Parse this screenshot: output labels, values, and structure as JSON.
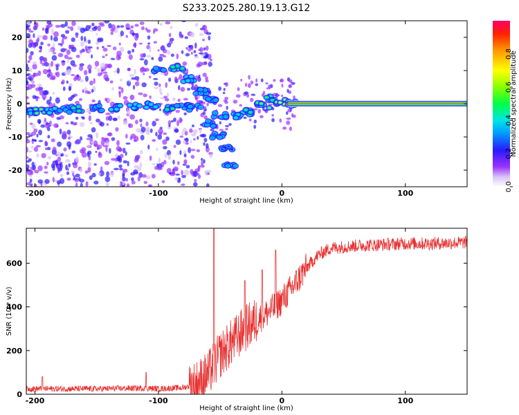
{
  "title": "S233.2025.280.19.13.G12",
  "chart_data": [
    {
      "type": "heatmap",
      "xlabel": "Height of straight line (km)",
      "ylabel": "Frequency (Hz)",
      "xlim": [
        -207,
        150
      ],
      "ylim": [
        -25,
        25
      ],
      "xticks": [
        -200,
        -100,
        0,
        100
      ],
      "yticks": [
        -20,
        -10,
        0,
        10,
        20
      ],
      "colorbar": {
        "label": "Normalized spectral amplitude",
        "ticks": [
          0.0,
          0.2,
          0.4,
          0.6,
          0.8
        ],
        "range": [
          0,
          1
        ]
      },
      "track_points": [
        {
          "x": -205,
          "f": -2.3,
          "a": 0.35
        },
        {
          "x": -195,
          "f": -2.4,
          "a": 0.55
        },
        {
          "x": -185,
          "f": -2.2,
          "a": 0.4
        },
        {
          "x": -175,
          "f": -1.8,
          "a": 0.3
        },
        {
          "x": -165,
          "f": -1.5,
          "a": 0.45
        },
        {
          "x": -150,
          "f": -1.3,
          "a": 0.3
        },
        {
          "x": -135,
          "f": -1.2,
          "a": 0.35
        },
        {
          "x": -120,
          "f": -0.8,
          "a": 0.4
        },
        {
          "x": -105,
          "f": -0.5,
          "a": 0.35
        },
        {
          "x": -92,
          "f": -1.5,
          "a": 0.5
        },
        {
          "x": -80,
          "f": -0.8,
          "a": 0.3
        },
        {
          "x": -70,
          "f": -1.2,
          "a": 0.25
        },
        {
          "x": -100,
          "f": 10.5,
          "a": 0.3
        },
        {
          "x": -85,
          "f": 10.8,
          "a": 0.45
        },
        {
          "x": -75,
          "f": 7.5,
          "a": 0.35
        },
        {
          "x": -65,
          "f": 3.5,
          "a": 0.3
        },
        {
          "x": -58,
          "f": 1.5,
          "a": 0.25
        },
        {
          "x": -60,
          "f": -6.0,
          "a": 0.3
        },
        {
          "x": -52,
          "f": -9.5,
          "a": 0.25
        },
        {
          "x": -45,
          "f": -13.5,
          "a": 0.2
        },
        {
          "x": -42,
          "f": -18.5,
          "a": 0.25
        },
        {
          "x": -50,
          "f": -3.5,
          "a": 0.3
        },
        {
          "x": -35,
          "f": -3.5,
          "a": 0.4
        },
        {
          "x": -25,
          "f": -2.5,
          "a": 0.45
        },
        {
          "x": -15,
          "f": -0.5,
          "a": 0.55
        },
        {
          "x": -8,
          "f": 1.5,
          "a": 0.5
        },
        {
          "x": 0,
          "f": 0.5,
          "a": 0.7
        },
        {
          "x": 10,
          "f": 0.0,
          "a": 0.85
        }
      ],
      "constant_line": {
        "x_start": 5,
        "x_end": 150,
        "f": 0,
        "amplitude": 0.95
      }
    },
    {
      "type": "line",
      "xlabel": "Height of straight line (km)",
      "ylabel": "SNR (10 * v/v)",
      "xlim": [
        -207,
        150
      ],
      "ylim": [
        0,
        760
      ],
      "xticks": [
        -200,
        -100,
        0,
        100
      ],
      "yticks": [
        0,
        200,
        400,
        600
      ],
      "color": "#e83030",
      "envelope": {
        "x": [
          -207,
          -150,
          -110,
          -100,
          -80,
          -70,
          -60,
          -50,
          -40,
          -30,
          -20,
          -10,
          0,
          10,
          20,
          30,
          40,
          60,
          80,
          100,
          120,
          150
        ],
        "y": [
          25,
          25,
          28,
          25,
          30,
          45,
          90,
          180,
          240,
          300,
          340,
          380,
          430,
          500,
          580,
          640,
          670,
          680,
          685,
          690,
          690,
          695
        ]
      },
      "spikes": [
        {
          "x": -55,
          "y": 760
        },
        {
          "x": -110,
          "y": 100
        },
        {
          "x": -194,
          "y": 80
        },
        {
          "x": -5,
          "y": 660
        },
        {
          "x": -16,
          "y": 570
        },
        {
          "x": -30,
          "y": 520
        }
      ]
    }
  ]
}
